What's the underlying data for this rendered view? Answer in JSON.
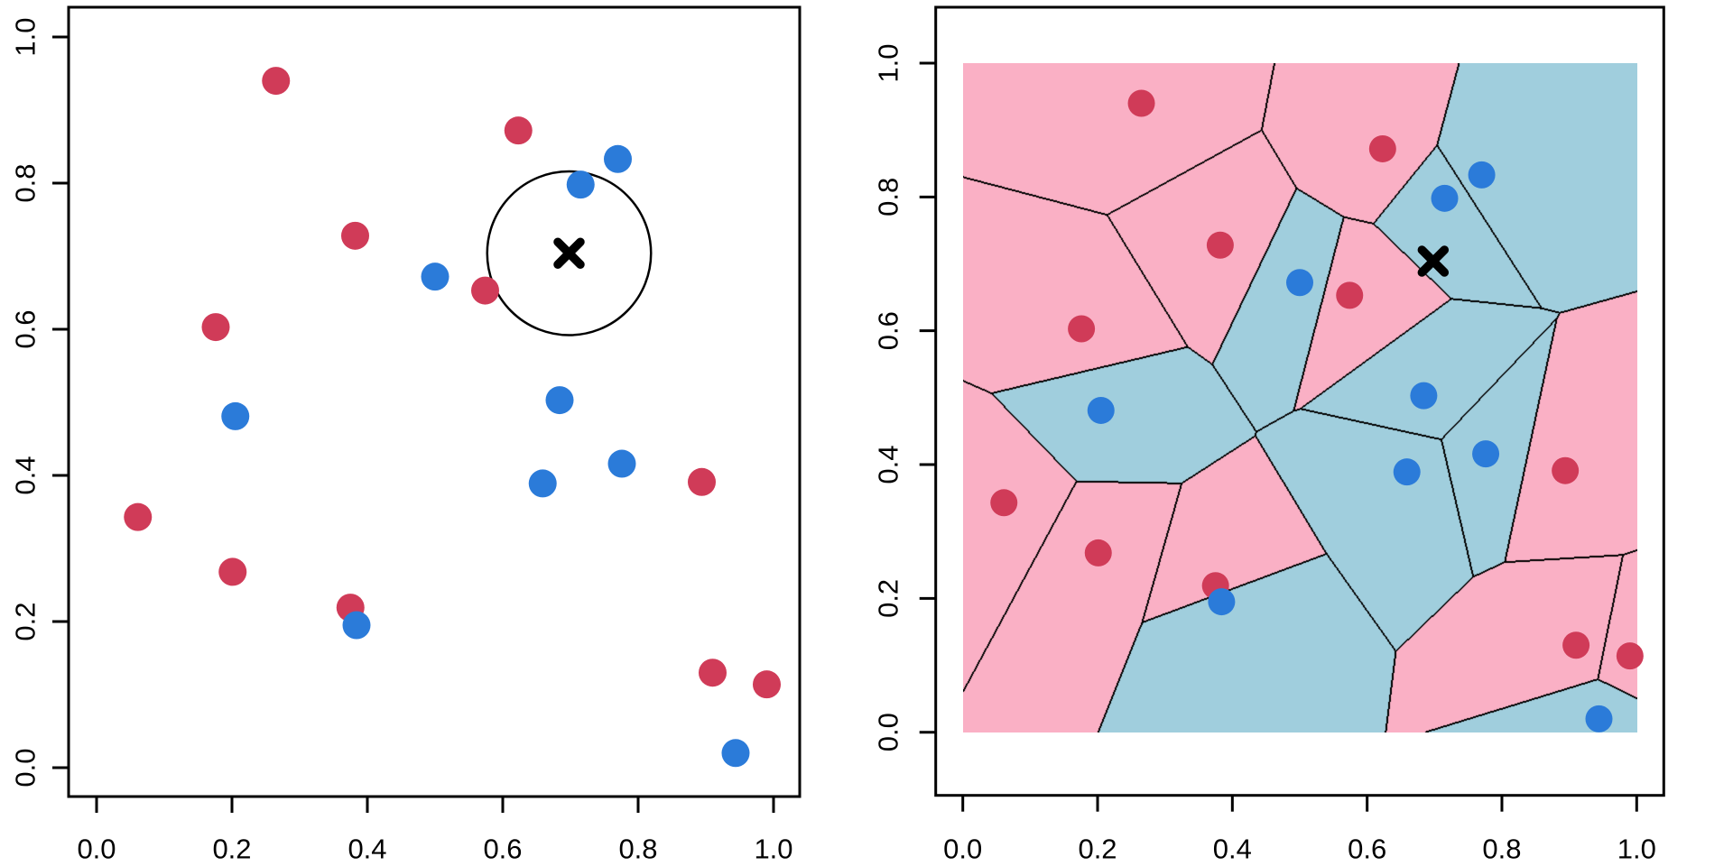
{
  "colors": {
    "red_point": "#D03B58",
    "blue_point": "#2B7BD9",
    "red_region": "#FAB0C5",
    "blue_region": "#A0CEDD",
    "axis": "#000000",
    "marker": "#000000",
    "background": "#FFFFFF"
  },
  "axes": {
    "x_tick_labels": [
      "0.0",
      "0.2",
      "0.4",
      "0.6",
      "0.8",
      "1.0"
    ],
    "y_tick_labels": [
      "0.0",
      "0.2",
      "0.4",
      "0.6",
      "0.8",
      "1.0"
    ],
    "x_tick_values": [
      0.0,
      0.2,
      0.4,
      0.6,
      0.8,
      1.0
    ],
    "y_tick_values": [
      0.0,
      0.2,
      0.4,
      0.6,
      0.8,
      1.0
    ]
  },
  "chart_data": {
    "type": "scatter",
    "panels": [
      {
        "id": "left",
        "type": "scatter",
        "title": "",
        "xlabel": "",
        "ylabel": "",
        "xlim": [
          -0.04,
          1.04
        ],
        "ylim": [
          -0.04,
          1.04
        ],
        "grid": false,
        "features": [
          "points",
          "test-x-marker",
          "neighborhood-circle"
        ],
        "neighborhood_circle": {
          "cx": 0.698,
          "cy": 0.704,
          "radius": 0.121
        }
      },
      {
        "id": "right",
        "type": "scatter",
        "title": "",
        "xlabel": "",
        "ylabel": "",
        "xlim": [
          -0.09,
          1.09
        ],
        "ylim": [
          -0.09,
          1.09
        ],
        "grid": false,
        "features": [
          "voronoi-1nn-decision-regions",
          "points",
          "test-x-marker"
        ],
        "region_clip": {
          "x": [
            0.0,
            1.0
          ],
          "y": [
            0.0,
            1.0
          ]
        },
        "region_fill_by_class": {
          "red": "red_region",
          "blue": "blue_region"
        },
        "cell_border_color": "#000000"
      }
    ],
    "series": [
      {
        "name": "red",
        "color_ref": "red_point",
        "points": [
          [
            0.265,
            0.94
          ],
          [
            0.623,
            0.872
          ],
          [
            0.382,
            0.728
          ],
          [
            0.574,
            0.653
          ],
          [
            0.176,
            0.603
          ],
          [
            0.061,
            0.343
          ],
          [
            0.201,
            0.268
          ],
          [
            0.375,
            0.219
          ],
          [
            0.894,
            0.391
          ],
          [
            0.91,
            0.13
          ],
          [
            0.99,
            0.114
          ]
        ]
      },
      {
        "name": "blue",
        "color_ref": "blue_point",
        "points": [
          [
            0.77,
            0.833
          ],
          [
            0.715,
            0.798
          ],
          [
            0.5,
            0.672
          ],
          [
            0.205,
            0.481
          ],
          [
            0.684,
            0.503
          ],
          [
            0.776,
            0.416
          ],
          [
            0.659,
            0.389
          ],
          [
            0.384,
            0.195
          ],
          [
            0.944,
            0.02
          ]
        ]
      }
    ],
    "test_point": {
      "x": 0.698,
      "y": 0.704,
      "symbol": "x"
    }
  }
}
